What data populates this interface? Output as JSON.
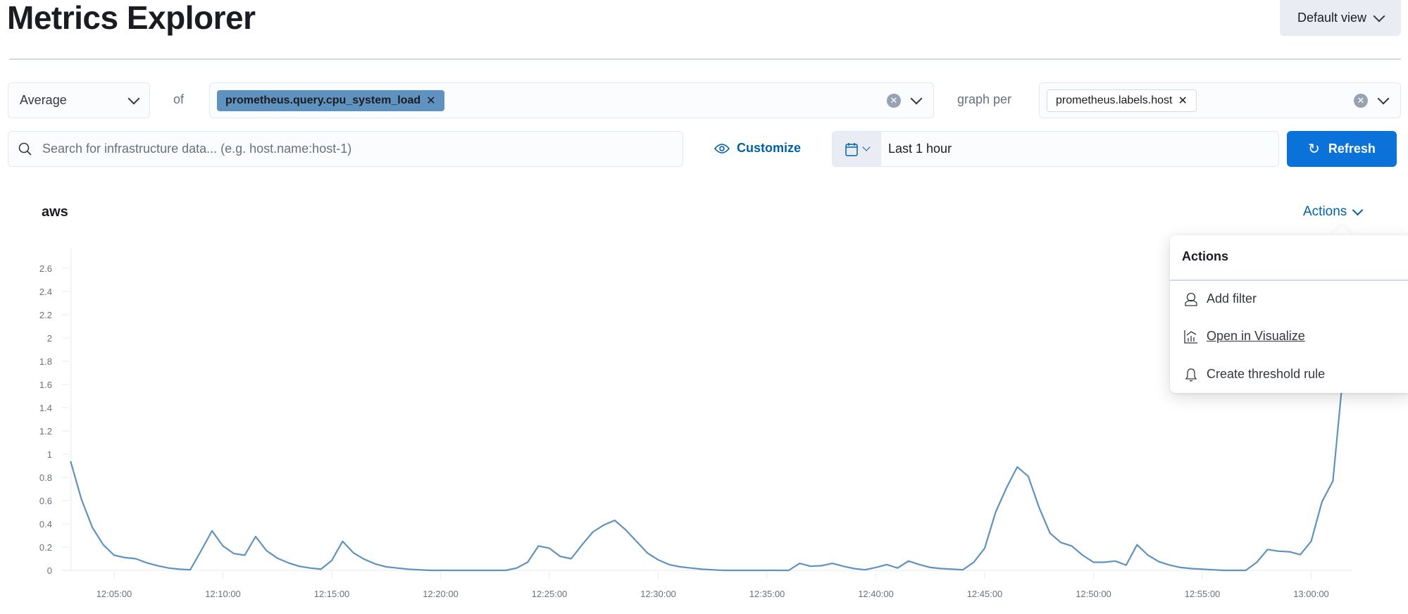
{
  "header": {
    "title": "Metrics Explorer",
    "default_view_label": "Default view"
  },
  "toolbar": {
    "aggregation": "Average",
    "of_label": "of",
    "metric_pill": "prometheus.query.cpu_system_load",
    "graph_per_label": "graph per",
    "group_pill": "prometheus.labels.host",
    "search_placeholder": "Search for infrastructure data... (e.g. host.name:host-1)",
    "customize_label": "Customize",
    "time_range": "Last 1 hour",
    "refresh_label": "Refresh"
  },
  "colors": {
    "accent": "#0b72d9",
    "link": "#0061a6",
    "series": "#6092c0",
    "pill": "#6092c0"
  },
  "panel": {
    "title": "aws",
    "actions_label": "Actions"
  },
  "actions_menu": {
    "title": "Actions",
    "items": [
      {
        "label": "Add filter",
        "icon": "filter-user-icon"
      },
      {
        "label": "Open in Visualize",
        "icon": "visualize-chart-icon"
      },
      {
        "label": "Create threshold rule",
        "icon": "bell-icon"
      }
    ]
  },
  "chart_data": {
    "type": "line",
    "xlim": [
      "12:03:00",
      "13:02:00"
    ],
    "ylim": [
      0,
      2.7
    ],
    "grid": false,
    "yticks": [
      "0",
      "0.2",
      "0.4",
      "0.6",
      "0.8",
      "1",
      "1.2",
      "1.4",
      "1.6",
      "1.8",
      "2",
      "2.2",
      "2.4",
      "2.6"
    ],
    "xticks": [
      "12:05:00",
      "12:10:00",
      "12:15:00",
      "12:20:00",
      "12:25:00",
      "12:30:00",
      "12:35:00",
      "12:40:00",
      "12:45:00",
      "12:50:00",
      "12:55:00",
      "13:00:00"
    ],
    "series": [
      {
        "color": "#6092c0",
        "points": [
          [
            "12:03:00",
            0.94
          ],
          [
            "12:03:30",
            0.61
          ],
          [
            "12:04:00",
            0.37
          ],
          [
            "12:04:30",
            0.22
          ],
          [
            "12:05:00",
            0.13
          ],
          [
            "12:05:30",
            0.11
          ],
          [
            "12:06:00",
            0.1
          ],
          [
            "12:06:30",
            0.065
          ],
          [
            "12:07:00",
            0.04
          ],
          [
            "12:07:30",
            0.02
          ],
          [
            "12:08:00",
            0.01
          ],
          [
            "12:08:30",
            0.005
          ],
          [
            "12:09:00",
            0.17
          ],
          [
            "12:09:30",
            0.34
          ],
          [
            "12:10:00",
            0.21
          ],
          [
            "12:10:30",
            0.145
          ],
          [
            "12:11:00",
            0.13
          ],
          [
            "12:11:30",
            0.29
          ],
          [
            "12:12:00",
            0.17
          ],
          [
            "12:12:30",
            0.105
          ],
          [
            "12:13:00",
            0.065
          ],
          [
            "12:13:30",
            0.035
          ],
          [
            "12:14:00",
            0.02
          ],
          [
            "12:14:30",
            0.01
          ],
          [
            "12:15:00",
            0.085
          ],
          [
            "12:15:30",
            0.25
          ],
          [
            "12:16:00",
            0.15
          ],
          [
            "12:16:30",
            0.095
          ],
          [
            "12:17:00",
            0.055
          ],
          [
            "12:17:30",
            0.03
          ],
          [
            "12:18:00",
            0.02
          ],
          [
            "12:18:30",
            0.01
          ],
          [
            "12:19:00",
            0.005
          ],
          [
            "12:19:30",
            0
          ],
          [
            "12:20:00",
            0
          ],
          [
            "12:20:30",
            0
          ],
          [
            "12:21:00",
            0
          ],
          [
            "12:21:30",
            0
          ],
          [
            "12:22:00",
            0
          ],
          [
            "12:22:30",
            0
          ],
          [
            "12:23:00",
            0
          ],
          [
            "12:23:30",
            0.02
          ],
          [
            "12:24:00",
            0.07
          ],
          [
            "12:24:30",
            0.21
          ],
          [
            "12:25:00",
            0.19
          ],
          [
            "12:25:30",
            0.12
          ],
          [
            "12:26:00",
            0.1
          ],
          [
            "12:26:30",
            0.22
          ],
          [
            "12:27:00",
            0.33
          ],
          [
            "12:27:30",
            0.39
          ],
          [
            "12:28:00",
            0.43
          ],
          [
            "12:28:30",
            0.35
          ],
          [
            "12:29:00",
            0.25
          ],
          [
            "12:29:30",
            0.15
          ],
          [
            "12:30:00",
            0.09
          ],
          [
            "12:30:30",
            0.05
          ],
          [
            "12:31:00",
            0.03
          ],
          [
            "12:31:30",
            0.02
          ],
          [
            "12:32:00",
            0.01
          ],
          [
            "12:32:30",
            0.005
          ],
          [
            "12:33:00",
            0
          ],
          [
            "12:33:30",
            0
          ],
          [
            "12:34:00",
            0
          ],
          [
            "12:34:30",
            0
          ],
          [
            "12:35:00",
            0
          ],
          [
            "12:35:30",
            0
          ],
          [
            "12:36:00",
            0
          ],
          [
            "12:36:30",
            0.06
          ],
          [
            "12:37:00",
            0.035
          ],
          [
            "12:37:30",
            0.04
          ],
          [
            "12:38:00",
            0.06
          ],
          [
            "12:38:30",
            0.035
          ],
          [
            "12:39:00",
            0.015
          ],
          [
            "12:39:30",
            0.005
          ],
          [
            "12:40:00",
            0.025
          ],
          [
            "12:40:30",
            0.05
          ],
          [
            "12:41:00",
            0.02
          ],
          [
            "12:41:30",
            0.08
          ],
          [
            "12:42:00",
            0.05
          ],
          [
            "12:42:30",
            0.025
          ],
          [
            "12:43:00",
            0.015
          ],
          [
            "12:43:30",
            0.01
          ],
          [
            "12:44:00",
            0.005
          ],
          [
            "12:44:30",
            0.07
          ],
          [
            "12:45:00",
            0.19
          ],
          [
            "12:45:30",
            0.5
          ],
          [
            "12:46:00",
            0.71
          ],
          [
            "12:46:30",
            0.89
          ],
          [
            "12:47:00",
            0.81
          ],
          [
            "12:47:30",
            0.54
          ],
          [
            "12:48:00",
            0.32
          ],
          [
            "12:48:30",
            0.24
          ],
          [
            "12:49:00",
            0.21
          ],
          [
            "12:49:30",
            0.13
          ],
          [
            "12:50:00",
            0.07
          ],
          [
            "12:50:30",
            0.07
          ],
          [
            "12:51:00",
            0.08
          ],
          [
            "12:51:30",
            0.045
          ],
          [
            "12:52:00",
            0.22
          ],
          [
            "12:52:30",
            0.13
          ],
          [
            "12:53:00",
            0.075
          ],
          [
            "12:53:30",
            0.045
          ],
          [
            "12:54:00",
            0.025
          ],
          [
            "12:54:30",
            0.015
          ],
          [
            "12:55:00",
            0.01
          ],
          [
            "12:55:30",
            0.005
          ],
          [
            "12:56:00",
            0
          ],
          [
            "12:56:30",
            0
          ],
          [
            "12:57:00",
            0
          ],
          [
            "12:57:30",
            0.07
          ],
          [
            "12:58:00",
            0.18
          ],
          [
            "12:58:30",
            0.165
          ],
          [
            "12:59:00",
            0.16
          ],
          [
            "12:59:30",
            0.135
          ],
          [
            "13:00:00",
            0.25
          ],
          [
            "13:00:30",
            0.59
          ],
          [
            "13:01:00",
            0.77
          ],
          [
            "13:01:30",
            1.75
          ]
        ]
      }
    ]
  }
}
